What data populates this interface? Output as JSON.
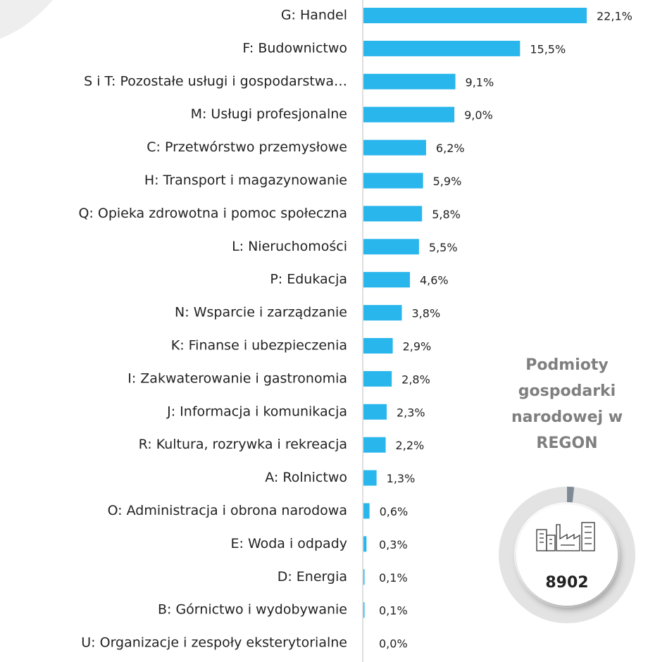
{
  "chart_data": {
    "type": "bar",
    "orientation": "horizontal",
    "color": "#29b6ec",
    "categories": [
      "G: Handel",
      "F: Budownictwo",
      "S i T: Pozostałe usługi i gospodarstwa…",
      "M: Usługi profesjonalne",
      "C: Przetwórstwo przemysłowe",
      "H: Transport i magazynowanie",
      "Q: Opieka zdrowotna i pomoc społeczna",
      "L: Nieruchomości",
      "P: Edukacja",
      "N: Wsparcie i zarządzanie",
      "K: Finanse i ubezpieczenia",
      "I: Zakwaterowanie i gastronomia",
      "J: Informacja i komunikacja",
      "R: Kultura, rozrywka i rekreacja",
      "A: Rolnictwo",
      "O: Administracja i obrona narodowa",
      "E: Woda i odpady",
      "D: Energia",
      "B: Górnictwo i wydobywanie",
      "U: Organizacje i zespoły eksterytorialne"
    ],
    "values": [
      22.1,
      15.5,
      9.1,
      9.0,
      6.2,
      5.9,
      5.8,
      5.5,
      4.6,
      3.8,
      2.9,
      2.8,
      2.3,
      2.2,
      1.3,
      0.6,
      0.3,
      0.1,
      0.1,
      0.0
    ],
    "value_labels": [
      "22,1%",
      "15,5%",
      "9,1%",
      "9,0%",
      "6,2%",
      "5,9%",
      "5,8%",
      "5,5%",
      "4,6%",
      "3,8%",
      "2,9%",
      "2,8%",
      "2,3%",
      "2,2%",
      "1,3%",
      "0,6%",
      "0,3%",
      "0,1%",
      "0,1%",
      "0,0%"
    ]
  },
  "panel": {
    "title": "Podmioty gospodarki narodowej w REGON",
    "value": 8902
  }
}
